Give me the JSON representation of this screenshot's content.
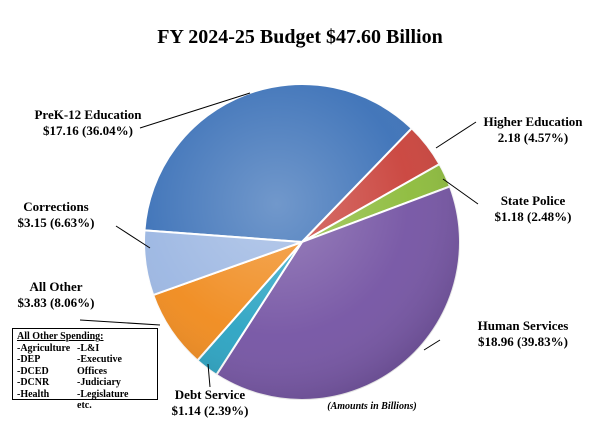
{
  "chart_data": {
    "type": "pie",
    "title": "FY 2024-25 Budget $47.60 Billion",
    "note": "(Amounts in Billions)",
    "total": 47.6,
    "slices": [
      {
        "name": "PreK-12 Education",
        "value": 17.16,
        "pct": "36.04%",
        "label_value": "$17.16 (36.04%)",
        "color": "#3a70b7"
      },
      {
        "name": "Higher Education",
        "value": 2.18,
        "pct": "4.57%",
        "label_value": "2.18 (4.57%)",
        "color": "#c9413a"
      },
      {
        "name": "State Police",
        "value": 1.18,
        "pct": "2.48%",
        "label_value": "$1.18 (2.48%)",
        "color": "#8cbb3a"
      },
      {
        "name": "Human Services",
        "value": 18.96,
        "pct": "39.83%",
        "label_value": "$18.96 (39.83%)",
        "color": "#7453a3"
      },
      {
        "name": "Debt Service",
        "value": 1.14,
        "pct": "2.39%",
        "label_value": "$1.14 (2.39%)",
        "color": "#2aa3c2"
      },
      {
        "name": "All Other",
        "value": 3.83,
        "pct": "8.06%",
        "label_value": "$3.83 (8.06%)",
        "color": "#f08a1c"
      },
      {
        "name": "Corrections",
        "value": 3.15,
        "pct": "6.63%",
        "label_value": "$3.15 (6.63%)",
        "color": "#9bb6e2"
      }
    ]
  },
  "other_spending": {
    "title": "All Other Spending",
    "col1": [
      "-Agriculture",
      "-DEP",
      "-DCED",
      "-DCNR",
      "-Health"
    ],
    "col2": [
      "-L&I",
      "-Executive Offices",
      "-Judiciary",
      "-Legislature",
      "etc."
    ]
  }
}
